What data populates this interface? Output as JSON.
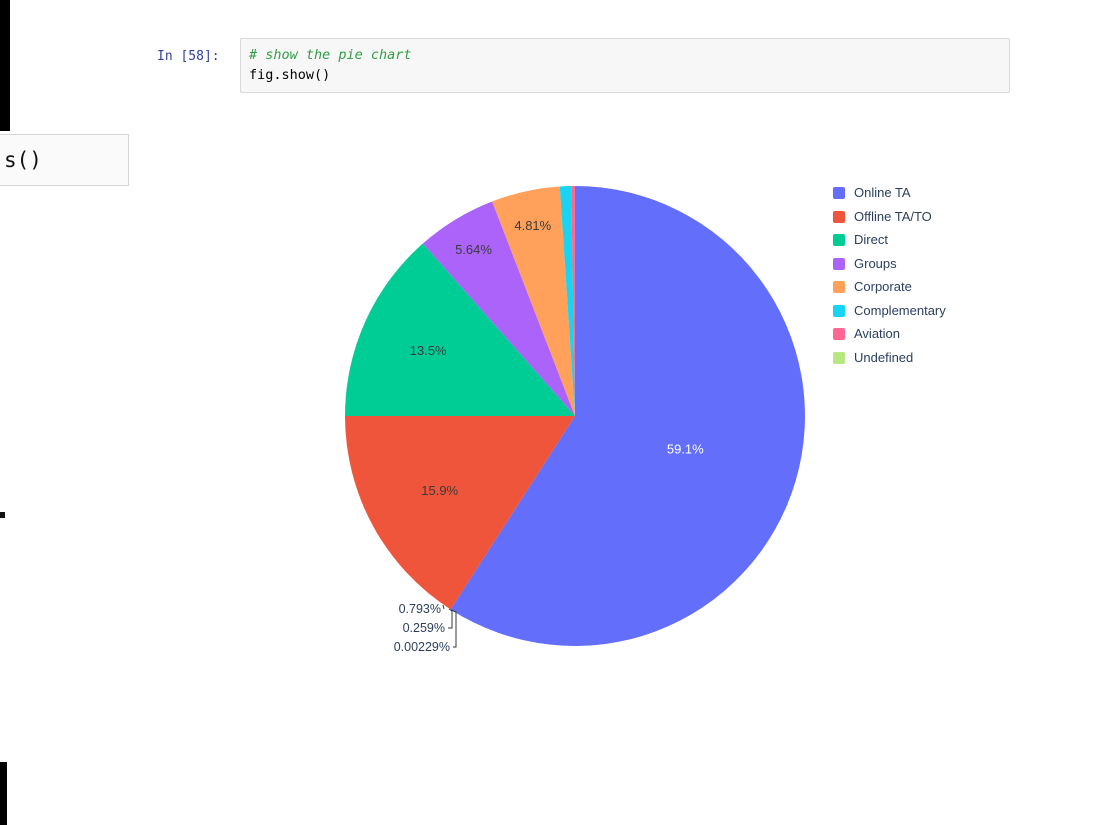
{
  "notebook": {
    "cell": {
      "prompt": "In [58]:",
      "comment": "# show the pie chart",
      "code": "fig.show()"
    },
    "fragment": {
      "text": "s()"
    }
  },
  "colors": {
    "prompt_blue": "#303F9F",
    "comment_green": "#2F9E44",
    "cell_background": "#f7f7f7",
    "cell_border": "#d9d9d9",
    "legend_text": "#2a3f5f"
  },
  "chart_data": {
    "type": "pie",
    "title": "",
    "labels": [
      "Online TA",
      "Offline TA/TO",
      "Direct",
      "Groups",
      "Corporate",
      "Complementary",
      "Aviation",
      "Undefined"
    ],
    "values": [
      59.1,
      15.9,
      13.5,
      5.64,
      4.81,
      0.793,
      0.259,
      0.00229
    ],
    "percent_labels": [
      "59.1%",
      "15.9%",
      "13.5%",
      "5.64%",
      "4.81%",
      "0.793%",
      "0.259%",
      "0.00229%"
    ],
    "colors": [
      "#636EFA",
      "#EF553B",
      "#00CC96",
      "#AB63FA",
      "#FFA15A",
      "#19D3F3",
      "#FF6692",
      "#B6E880"
    ],
    "legend_position": "right",
    "direction": "clockwise",
    "start_angle_deg": 0,
    "inside_label_radius_fraction": [
      0.5,
      0.67,
      0.7,
      0.85,
      0.85
    ],
    "inside_text_colors": [
      "#ffffff",
      "#3b3b3b",
      "#3b3b3b",
      "#3b3b3b",
      "#3b3b3b"
    ]
  }
}
